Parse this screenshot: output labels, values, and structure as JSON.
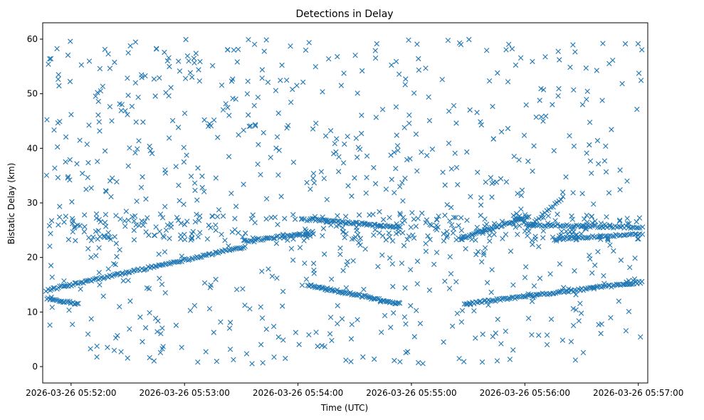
{
  "chart_data": {
    "type": "scatter",
    "title": "Detections in Delay",
    "xlabel": "Time (UTC)",
    "ylabel": "Bistatic Delay (km)",
    "marker": "x",
    "color": "#1f77b4",
    "x_unit": "seconds after 2026-03-26 05:51:00",
    "xlim": [
      45,
      365
    ],
    "ylim": [
      -3,
      63
    ],
    "x_ticks": [
      {
        "value": 60,
        "label": "2026-03-26 05:52:00"
      },
      {
        "value": 120,
        "label": "2026-03-26 05:53:00"
      },
      {
        "value": 180,
        "label": "2026-03-26 05:54:00"
      },
      {
        "value": 240,
        "label": "2026-03-26 05:55:00"
      },
      {
        "value": 300,
        "label": "2026-03-26 05:56:00"
      },
      {
        "value": 360,
        "label": "2026-03-26 05:57:00"
      }
    ],
    "y_ticks": [
      {
        "value": 0,
        "label": "0"
      },
      {
        "value": 10,
        "label": "10"
      },
      {
        "value": 20,
        "label": "20"
      },
      {
        "value": 30,
        "label": "30"
      },
      {
        "value": 40,
        "label": "40"
      },
      {
        "value": 50,
        "label": "50"
      },
      {
        "value": 60,
        "label": "60"
      }
    ],
    "tracks": [
      {
        "name": "track-rising-1",
        "x_start": 47,
        "x_end": 152,
        "y_start": 14.0,
        "y_end": 22.0,
        "count": 120
      },
      {
        "name": "track-low-1",
        "x_start": 47,
        "x_end": 64,
        "y_start": 12.5,
        "y_end": 11.5,
        "count": 22
      },
      {
        "name": "track-mid-1",
        "x_start": 152,
        "x_end": 188,
        "y_start": 23.0,
        "y_end": 24.5,
        "count": 40
      },
      {
        "name": "track-falling-1",
        "x_start": 185,
        "x_end": 234,
        "y_start": 15.0,
        "y_end": 11.5,
        "count": 70
      },
      {
        "name": "track-flat-1",
        "x_start": 186,
        "x_end": 234,
        "y_start": 27.0,
        "y_end": 25.5,
        "count": 60
      },
      {
        "name": "track-low-2",
        "x_start": 268,
        "x_end": 362,
        "y_start": 11.5,
        "y_end": 15.5,
        "count": 110
      },
      {
        "name": "track-rising-2",
        "x_start": 266,
        "x_end": 302,
        "y_start": 23.5,
        "y_end": 27.5,
        "count": 45
      },
      {
        "name": "track-flat-2",
        "x_start": 302,
        "x_end": 362,
        "y_start": 26.0,
        "y_end": 25.5,
        "count": 60
      },
      {
        "name": "track-mid-2",
        "x_start": 318,
        "x_end": 362,
        "y_start": 23.5,
        "y_end": 24.3,
        "count": 45
      },
      {
        "name": "track-rising-3",
        "x_start": 300,
        "x_end": 320,
        "y_start": 25.0,
        "y_end": 31.0,
        "count": 20
      }
    ],
    "clutter": {
      "x_range": [
        47,
        362
      ],
      "y_range": [
        0.5,
        60
      ],
      "count": 760,
      "band_range": [
        23,
        28
      ],
      "band_count": 260
    }
  }
}
